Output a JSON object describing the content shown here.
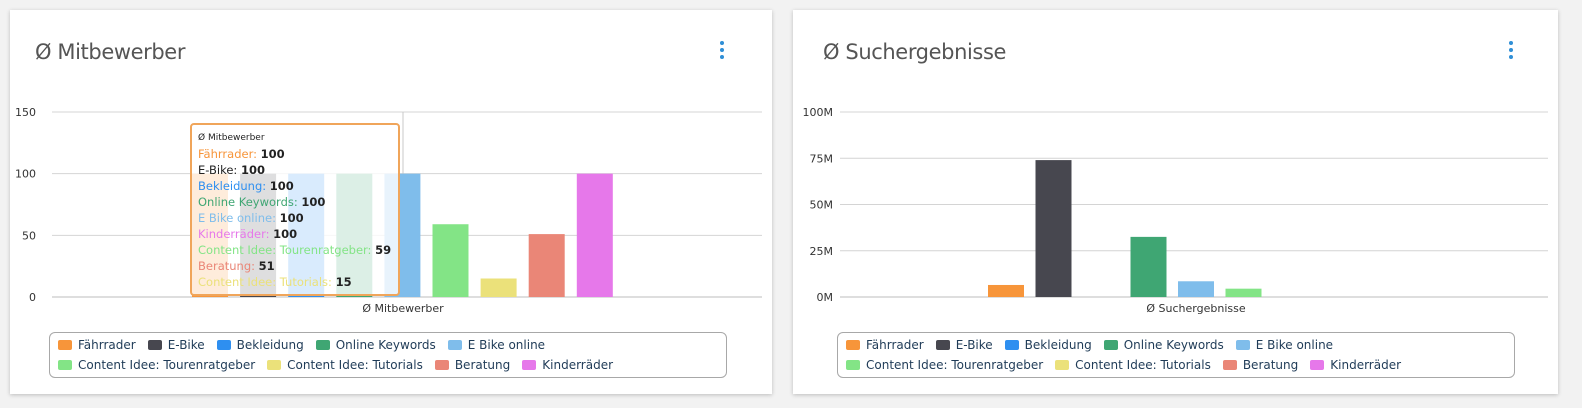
{
  "colors": {
    "series": [
      "#f7953a",
      "#47474f",
      "#2e8ff0",
      "#3fa673",
      "#7fbdeb",
      "#83e486",
      "#ebe17a",
      "#ea8677",
      "#e678ea"
    ],
    "tooltip_border": "#f0a55a",
    "menu": "#2f8fd6"
  },
  "icons": {
    "menu": "kebab-menu-icon"
  },
  "left": {
    "title": "Ø Mitbewerber",
    "legend": [
      "Fährrader",
      "E-Bike",
      "Bekleidung",
      "Online Keywords",
      "E Bike online",
      "Content Idee: Tourenratgeber",
      "Content Idee: Tutorials",
      "Beratung",
      "Kinderräder"
    ],
    "tooltip": {
      "title": "Ø Mitbewerber",
      "rows": [
        {
          "name": "Fährrader",
          "value": "100",
          "color": "#f7953a"
        },
        {
          "name": "E-Bike",
          "value": "100",
          "color": "#222222"
        },
        {
          "name": "Bekleidung",
          "value": "100",
          "color": "#2e8ff0"
        },
        {
          "name": "Online Keywords",
          "value": "100",
          "color": "#3fa673"
        },
        {
          "name": "E Bike online",
          "value": "100",
          "color": "#7fbdeb"
        },
        {
          "name": "Kinderräder",
          "value": "100",
          "color": "#e678ea"
        },
        {
          "name": "Content Idee: Tourenratgeber",
          "value": "59",
          "color": "#83e486"
        },
        {
          "name": "Beratung",
          "value": "51",
          "color": "#ea8677"
        },
        {
          "name": "Content Idee: Tutorials",
          "value": "15",
          "color": "#ebe17a"
        }
      ]
    }
  },
  "right": {
    "title": "Ø Suchergebnisse",
    "legend": [
      "Fährrader",
      "E-Bike",
      "Bekleidung",
      "Online Keywords",
      "E Bike online",
      "Content Idee: Tourenratgeber",
      "Content Idee: Tutorials",
      "Beratung",
      "Kinderräder"
    ]
  },
  "chart_data": [
    {
      "type": "bar",
      "title": "Ø Mitbewerber",
      "categories": [
        "Ø Mitbewerber"
      ],
      "ylim": [
        0,
        150
      ],
      "yticks": [
        0,
        50,
        100,
        150
      ],
      "ytick_labels": [
        "0",
        "50",
        "100",
        "150"
      ],
      "grid": true,
      "legend_position": "bottom",
      "series": [
        {
          "name": "Fährrader",
          "values": [
            100
          ]
        },
        {
          "name": "E-Bike",
          "values": [
            100
          ]
        },
        {
          "name": "Bekleidung",
          "values": [
            100
          ]
        },
        {
          "name": "Online Keywords",
          "values": [
            100
          ]
        },
        {
          "name": "E Bike online",
          "values": [
            100
          ]
        },
        {
          "name": "Content Idee: Tourenratgeber",
          "values": [
            59
          ]
        },
        {
          "name": "Content Idee: Tutorials",
          "values": [
            15
          ]
        },
        {
          "name": "Beratung",
          "values": [
            51
          ]
        },
        {
          "name": "Kinderräder",
          "values": [
            100
          ]
        }
      ]
    },
    {
      "type": "bar",
      "title": "Ø Suchergebnisse",
      "categories": [
        "Ø Suchergebnisse"
      ],
      "ylim": [
        0,
        100000000
      ],
      "yticks": [
        0,
        25000000,
        50000000,
        75000000,
        100000000
      ],
      "ytick_labels": [
        "0M",
        "25M",
        "50M",
        "75M",
        "100M"
      ],
      "grid": true,
      "legend_position": "bottom",
      "series": [
        {
          "name": "Fährrader",
          "values": [
            6500000
          ]
        },
        {
          "name": "E-Bike",
          "values": [
            74000000
          ]
        },
        {
          "name": "Bekleidung",
          "values": [
            0
          ]
        },
        {
          "name": "Online Keywords",
          "values": [
            32500000
          ]
        },
        {
          "name": "E Bike online",
          "values": [
            8500000
          ]
        },
        {
          "name": "Content Idee: Tourenratgeber",
          "values": [
            4500000
          ]
        },
        {
          "name": "Content Idee: Tutorials",
          "values": [
            0
          ]
        },
        {
          "name": "Beratung",
          "values": [
            0
          ]
        },
        {
          "name": "Kinderräder",
          "values": [
            0
          ]
        }
      ]
    }
  ]
}
